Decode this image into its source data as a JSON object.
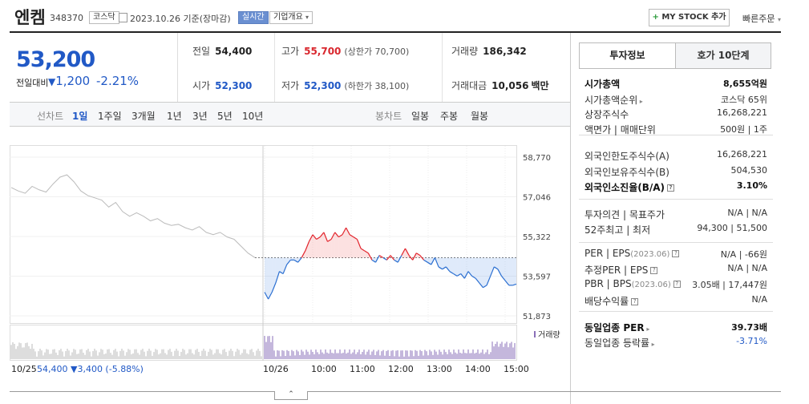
{
  "header": {
    "name": "엔켐",
    "code": "348370",
    "market_badge": "코스닥",
    "date": "2023.10.26 기준(장마감)",
    "realtime_badge": "실시간",
    "company_overview": "기업개요",
    "mystock_button": "MY STOCK 추가",
    "quick_order": "빠른주문"
  },
  "price": {
    "current": "53,200",
    "change_label": "전일대비",
    "change_value": "1,200",
    "change_pct": "-2.21%"
  },
  "info": {
    "prev_label": "전일",
    "prev": "54,400",
    "high_label": "고가",
    "high": "55,700",
    "upper_limit": "(상한가 70,700)",
    "volume_label": "거래량",
    "volume": "186,342",
    "open_label": "시가",
    "open": "52,300",
    "low_label": "저가",
    "low": "52,300",
    "lower_limit": "(하한가 38,100)",
    "amount_label": "거래대금",
    "amount": "10,056",
    "amount_unit": "백만"
  },
  "period_bar": {
    "line_label": "선차트",
    "periods": [
      "1일",
      "1주일",
      "3개월",
      "1년",
      "3년",
      "5년",
      "10년"
    ],
    "candle_label": "봉차트",
    "candles": [
      "일봉",
      "주봉",
      "월봉"
    ]
  },
  "sidebar": {
    "tab_invest": "투자정보",
    "tab_quote": "호가 10단계",
    "rows": [
      {
        "l": "시가총액",
        "r": "8,655억원"
      },
      {
        "l": "시가총액순위",
        "r": "코스닥 65위"
      },
      {
        "l": "상장주식수",
        "r": "16,268,221"
      },
      {
        "l": "액면가 | 매매단위",
        "r": "500원 | 1주"
      },
      {
        "l": "외국인한도주식수(A)",
        "r": "16,268,221"
      },
      {
        "l": "외국인보유주식수(B)",
        "r": "504,530"
      },
      {
        "l": "외국인소진율(B/A)",
        "r": "3.10%"
      },
      {
        "l": "투자의견 | 목표주가",
        "r": "N/A | N/A"
      },
      {
        "l": "52주최고 | 최저",
        "r": "94,300 | 51,500"
      },
      {
        "l": "PER | EPS",
        "l2": "(2023.06)",
        "r": "N/A | -66원"
      },
      {
        "l": "추정PER | EPS",
        "r": "N/A | N/A"
      },
      {
        "l": "PBR | BPS",
        "l2": "(2023.06)",
        "r": "3.05배 | 17,447원"
      },
      {
        "l": "배당수익률",
        "r": "N/A"
      },
      {
        "l": "동일업종 PER",
        "r": "39.73배"
      },
      {
        "l": "동일업종 등락률",
        "r": "-3.71%"
      }
    ]
  },
  "chart_data": {
    "type": "line",
    "y_ticks": [
      "58,770",
      "57,046",
      "55,322",
      "53,597",
      "51,873"
    ],
    "ylim": [
      51873,
      58770
    ],
    "prev_close": 54400,
    "x_labels": [
      "10/26",
      "10:00",
      "11:00",
      "12:00",
      "13:00",
      "14:00",
      "15:00"
    ],
    "volume_label": "거래량",
    "prev_day_label": "10/25",
    "prev_day_summary": "54,400 ▼3,400 (-5.88%)",
    "prev_day_series": [
      57450,
      57300,
      57200,
      57500,
      57350,
      57250,
      57600,
      57900,
      58000,
      57700,
      57300,
      57100,
      57000,
      56900,
      56600,
      56800,
      56400,
      56200,
      56350,
      56200,
      56000,
      56100,
      55900,
      55800,
      55850,
      55700,
      55600,
      55750,
      55500,
      55400,
      55500,
      55300,
      55200,
      54900,
      54600,
      54400
    ],
    "today_series": [
      52900,
      52600,
      52900,
      53300,
      53800,
      53700,
      54100,
      54300,
      54300,
      54200,
      54400,
      54700,
      55100,
      55400,
      55200,
      55300,
      55500,
      55100,
      55200,
      55500,
      55300,
      55400,
      55700,
      55400,
      55300,
      55200,
      54800,
      54700,
      54600,
      54300,
      54200,
      54500,
      54400,
      54300,
      54500,
      54300,
      54200,
      54500,
      54800,
      54500,
      54300,
      54600,
      54500,
      54300,
      54200,
      54100,
      54400,
      54000,
      53900,
      54000,
      53800,
      53700,
      53600,
      53700,
      53500,
      53800,
      53600,
      53500,
      53300,
      53100,
      53200,
      53600,
      54000,
      53900,
      53600,
      53400,
      53200,
      53200,
      53250
    ]
  }
}
